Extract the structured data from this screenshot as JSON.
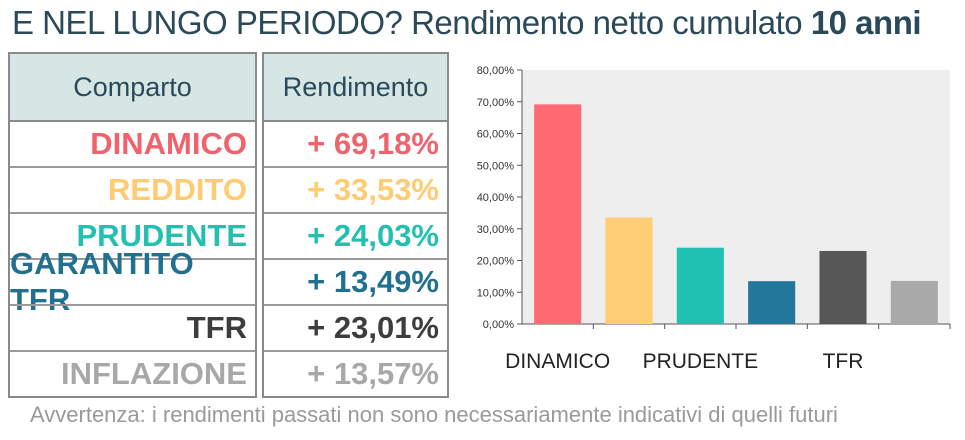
{
  "header": {
    "title_prefix": "E NEL LUNGO PERIODO?",
    "title_middle": "Rendimento netto cumulato",
    "title_bold": "10 anni"
  },
  "table": {
    "col1_header": "Comparto",
    "col2_header": "Rendimento",
    "rows": [
      {
        "name": "DINAMICO",
        "value": "+ 69,18%",
        "color": "#f0636c"
      },
      {
        "name": "REDDITO",
        "value": "+ 33,53%",
        "color": "#ffcb73"
      },
      {
        "name": "PRUDENTE",
        "value": "+ 24,03%",
        "color": "#23bfb1"
      },
      {
        "name": "GARANTITO TFR",
        "value": "+ 13,49%",
        "color": "#22708f"
      },
      {
        "name": "TFR",
        "value": "+ 23,01%",
        "color": "#3d3d3d"
      },
      {
        "name": "INFLAZIONE",
        "value": "+ 13,57%",
        "color": "#a8a8a8"
      }
    ]
  },
  "chart_data": {
    "type": "bar",
    "categories": [
      "DINAMICO",
      "",
      "PRUDENTE",
      "",
      "TFR",
      ""
    ],
    "values": [
      69.18,
      33.53,
      24.03,
      13.49,
      23.01,
      13.57
    ],
    "colors": [
      "#ff6b72",
      "#ffcd74",
      "#20c1b1",
      "#23779a",
      "#575757",
      "#a9a9a9"
    ],
    "ylim": [
      0,
      80
    ],
    "yticks": [
      "0,00%",
      "10,00%",
      "20,00%",
      "30,00%",
      "40,00%",
      "50,00%",
      "60,00%",
      "70,00%",
      "80,00%"
    ],
    "grid": false,
    "background": "#eeeeee"
  },
  "footer": {
    "note": "Avvertenza: i rendimenti passati non sono necessariamente indicativi di quelli futuri"
  }
}
